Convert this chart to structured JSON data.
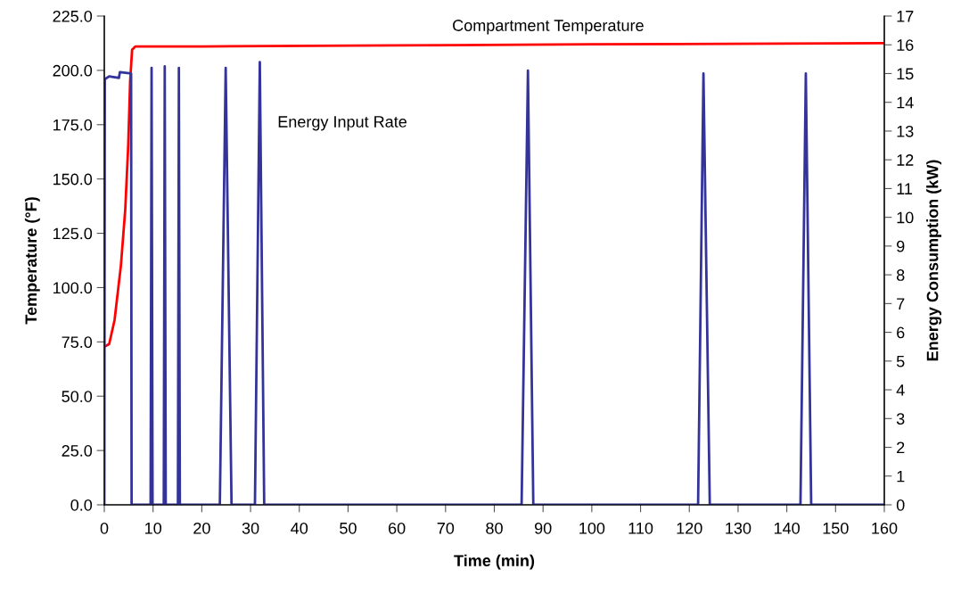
{
  "chart_data": {
    "type": "line",
    "xlabel": "Time (min)",
    "ylabel": "Temperature (°F)",
    "y2label": "Energy Consumption (kW)",
    "xlim": [
      0,
      160
    ],
    "xticks": [
      0,
      10,
      20,
      30,
      40,
      50,
      60,
      70,
      80,
      90,
      100,
      110,
      120,
      130,
      140,
      150,
      160
    ],
    "ylim": [
      0,
      225
    ],
    "yticks": [
      {
        "value": 0,
        "label": "0.0"
      },
      {
        "value": 25,
        "label": "25.0"
      },
      {
        "value": 50,
        "label": "50.0"
      },
      {
        "value": 75,
        "label": "75.0"
      },
      {
        "value": 100,
        "label": "100.0"
      },
      {
        "value": 125,
        "label": "125.0"
      },
      {
        "value": 150,
        "label": "150.0"
      },
      {
        "value": 175,
        "label": "175.0"
      },
      {
        "value": 200,
        "label": "200.0"
      },
      {
        "value": 225,
        "label": "225.0"
      }
    ],
    "y2lim": [
      0,
      17
    ],
    "y2ticks": [
      0,
      1,
      2,
      3,
      4,
      5,
      6,
      7,
      8,
      9,
      10,
      11,
      12,
      13,
      14,
      15,
      16,
      17
    ],
    "grid": false,
    "legend": false,
    "marker": "none",
    "line_style": "solid",
    "series": [
      {
        "color": "#ff0000",
        "x": [
          0.3,
          1.0,
          2.1,
          3.4,
          4.3,
          4.9,
          5.3,
          5.7,
          6.4,
          20,
          60,
          100,
          160
        ],
        "values": [
          73.1,
          74,
          85,
          110,
          136,
          165,
          195,
          209.5,
          211,
          211,
          211.5,
          212,
          212.5
        ]
      },
      {
        "color": "#333399",
        "axis": "y2",
        "x": [
          0,
          0.1,
          1,
          3.0,
          3.2,
          5.5,
          5.6,
          9.5,
          9.7,
          9.9,
          12.2,
          12.4,
          12.6,
          15.1,
          15.3,
          15.5,
          23.7,
          24.9,
          26.1,
          30.9,
          31.9,
          32.8,
          85.6,
          86.9,
          88.0,
          121.8,
          122.9,
          124.2,
          142.8,
          143.9,
          145.0,
          160
        ],
        "values": [
          0,
          14.8,
          14.9,
          14.85,
          15.05,
          15.0,
          0,
          0,
          15.2,
          0,
          0,
          15.25,
          0,
          0,
          15.2,
          0,
          0,
          15.2,
          0,
          0,
          15.4,
          0,
          0,
          15.1,
          0,
          0,
          15.0,
          0,
          0,
          15.0,
          0,
          0
        ]
      }
    ],
    "annotations": [
      "Compartment Temperature",
      "Energy Input Rate"
    ]
  }
}
